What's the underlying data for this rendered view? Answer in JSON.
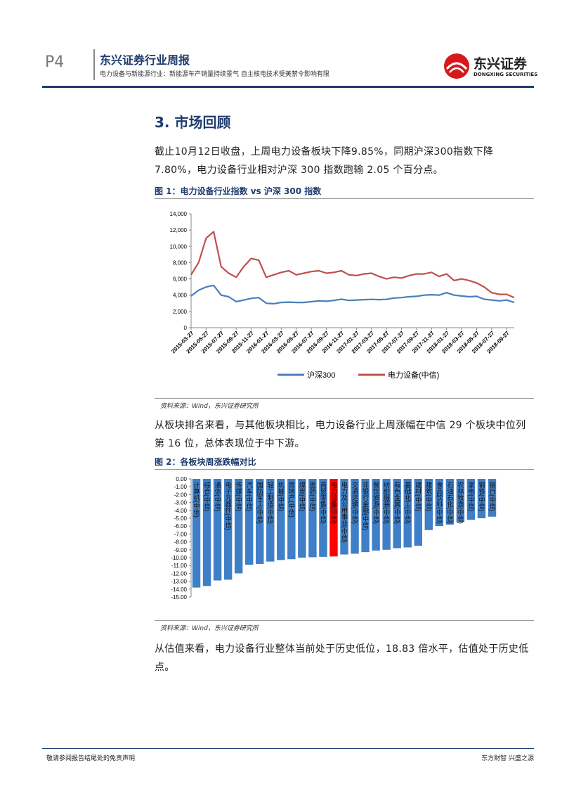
{
  "header": {
    "page": "P4",
    "title": "东兴证券行业周报",
    "subtitle": "电力设备与新能源行业：新能源车产销量持续景气 自主核电技术受美禁令影响有限",
    "logo": "东兴证券",
    "logo_en": "DONGXING SECURITIES"
  },
  "section": "3. 市场回顾",
  "paragraphs": [
    "截止10月12日收盘，上周电力设备板块下降9.85%，同期沪深300指数下降7.80%，电力设备行业相对沪深 300 指数跑输 2.05 个百分点。",
    "从板块排名来看，与其他板块相比，电力设备行业上周涨幅在中信 29 个板块中位列第 16 位，总体表现位于中下游。",
    "从估值来看，电力设备行业整体当前处于历史低位，18.83 倍水平，估值处于历史低点。"
  ],
  "figures": [
    {
      "caption": "图 1：电力设备行业指数 vs 沪深 300 指数",
      "source": "资料来源：Wind，东兴证券研究所"
    },
    {
      "caption": "图 2：各板块周涨跌幅对比",
      "source": "资料来源：Wind，东兴证券研究所"
    }
  ],
  "footer": {
    "left": "敬请参阅报告结尾处的免责声明",
    "right": "东方财智 兴盛之源"
  },
  "chart_data": [
    {
      "type": "line",
      "categories": [
        "2015-03-27",
        null,
        "2015-05-27",
        null,
        "2015-07-27",
        null,
        "2015-09-27",
        null,
        "2015-11-27",
        null,
        "2016-01-27",
        null,
        "2016-03-27",
        null,
        "2016-05-27",
        null,
        "2016-07-27",
        null,
        "2016-09-27",
        null,
        "2016-11-27",
        null,
        "2017-01-27",
        null,
        "2017-03-27",
        null,
        "2017-05-27",
        null,
        "2017-07-27",
        null,
        "2017-09-27",
        null,
        "2017-11-27",
        null,
        "2018-01-27",
        null,
        "2018-03-27",
        null,
        "2018-05-27",
        null,
        "2018-07-27",
        null,
        "2018-09-27",
        null
      ],
      "series": [
        {
          "name": "沪深300",
          "color": "#4a7ebb",
          "values": [
            3900,
            4600,
            5000,
            5200,
            4000,
            3800,
            3200,
            3400,
            3600,
            3700,
            3000,
            2950,
            3100,
            3150,
            3100,
            3100,
            3200,
            3300,
            3250,
            3350,
            3500,
            3350,
            3400,
            3450,
            3480,
            3450,
            3480,
            3650,
            3700,
            3800,
            3850,
            4000,
            4050,
            4000,
            4300,
            4000,
            3900,
            3800,
            3850,
            3500,
            3400,
            3300,
            3400,
            3100
          ]
        },
        {
          "name": "电力设备(中信)",
          "color": "#c0504d",
          "values": [
            6500,
            8000,
            11000,
            11800,
            7500,
            6700,
            6200,
            7500,
            8500,
            8300,
            6200,
            6500,
            6800,
            7000,
            6500,
            6700,
            6900,
            7000,
            6700,
            6800,
            7000,
            6500,
            6400,
            6600,
            6700,
            6300,
            6000,
            6200,
            6100,
            6400,
            6600,
            6600,
            6800,
            6300,
            6600,
            5800,
            6000,
            5800,
            5500,
            5000,
            4300,
            4100,
            4100,
            3700
          ]
        }
      ],
      "ylim": [
        0,
        14000
      ],
      "yticks": [
        0,
        {
          "value": 2000,
          "label": "2,000"
        },
        {
          "value": 4000,
          "label": "4,000"
        },
        {
          "value": 6000,
          "label": "6,000"
        },
        {
          "value": 8000,
          "label": "8,000"
        },
        {
          "value": 10000,
          "label": "10,000"
        },
        {
          "value": 12000,
          "label": "12,000"
        },
        {
          "value": 14000,
          "label": "14,000"
        }
      ],
      "legend": "bottom"
    },
    {
      "type": "bar",
      "categories": [
        "计算机(中信)",
        "综合(中信)",
        "通信(中信)",
        "电子元器件(中信)",
        "传媒(中信)",
        "汽车(中信)",
        "国防军工(中信)",
        "轻工制造(中信)",
        "机械(中信)",
        "房地产(中信)",
        "煤炭(中信)",
        "医药(中信)",
        "商贸零售(中信)",
        "电力设备(中信)",
        "电力及公用事业(中信)",
        "交通运输(中信)",
        "非银行金融(中信)",
        "餐饮旅游(中信)",
        "纺织服装(中信)",
        "有色金属(中信)",
        "基础化工(中信)",
        "建材(中信)",
        "建筑(中信)",
        "食品饮料(中信)",
        "石油石化(中信)",
        "农林牧渔(中信)",
        "家电(中信)",
        "钢铁(中信)",
        "银行(中信)"
      ],
      "values": [
        -13.8,
        -13.6,
        -12.9,
        -12.8,
        -12.0,
        -10.9,
        -10.8,
        -10.5,
        -10.3,
        -10.2,
        -10.0,
        -9.95,
        -9.9,
        -9.85,
        -9.6,
        -9.5,
        -9.3,
        -9.1,
        -9.0,
        -8.8,
        -8.7,
        -8.5,
        -6.5,
        -6.0,
        -5.8,
        -5.5,
        -5.2,
        -5.0,
        -4.8
      ],
      "colors": [
        "#3f7fc7",
        "#3f7fc7",
        "#3f7fc7",
        "#3f7fc7",
        "#3f7fc7",
        "#3f7fc7",
        "#3f7fc7",
        "#3f7fc7",
        "#3f7fc7",
        "#3f7fc7",
        "#3f7fc7",
        "#3f7fc7",
        "#3f7fc7",
        "#ff0000",
        "#3f7fc7",
        "#3f7fc7",
        "#3f7fc7",
        "#3f7fc7",
        "#3f7fc7",
        "#3f7fc7",
        "#3f7fc7",
        "#3f7fc7",
        "#3f7fc7",
        "#3f7fc7",
        "#3f7fc7",
        "#3f7fc7",
        "#3f7fc7",
        "#3f7fc7",
        "#3f7fc7"
      ],
      "ylim": [
        -15,
        0
      ],
      "yticks": [
        {
          "value": 0,
          "label": "0.00"
        },
        {
          "value": -1,
          "label": "-1.00"
        },
        {
          "value": -2,
          "label": "-2.00"
        },
        {
          "value": -3,
          "label": "-3.00"
        },
        {
          "value": -4,
          "label": "-4.00"
        },
        {
          "value": -5,
          "label": "-5.00"
        },
        {
          "value": -6,
          "label": "-6.00"
        },
        {
          "value": -7,
          "label": "-7.00"
        },
        {
          "value": -8,
          "label": "-8.00"
        },
        {
          "value": -9,
          "label": "-9.00"
        },
        {
          "value": -10,
          "label": "-10.00"
        },
        {
          "value": -11,
          "label": "-11.00"
        },
        {
          "value": -12,
          "label": "-12.00"
        },
        {
          "value": -13,
          "label": "-13.00"
        },
        {
          "value": -14,
          "label": "-14.00"
        },
        {
          "value": -15,
          "label": "-15.00"
        }
      ]
    }
  ]
}
